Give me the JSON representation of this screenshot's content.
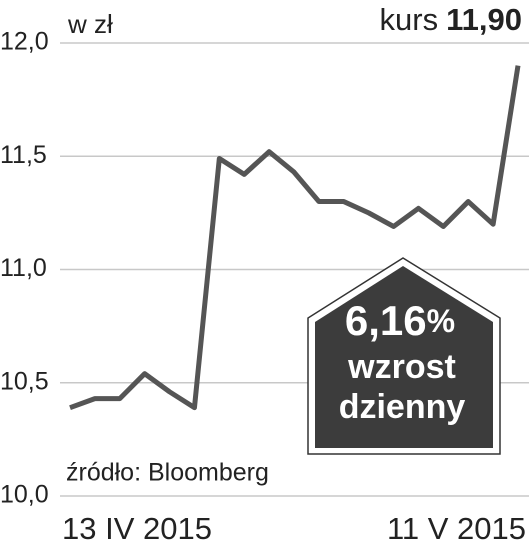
{
  "chart_data": {
    "type": "line",
    "unit_label": "w zł",
    "kurs_label": "kurs",
    "kurs_value": "11,90",
    "source": "źródło: Bloomberg",
    "badge": {
      "value": "6,16",
      "unit": "%",
      "line1": "wzrost",
      "line2": "dzienny"
    },
    "categories": [
      "13 IV 2015",
      null,
      null,
      null,
      null,
      null,
      null,
      null,
      null,
      null,
      null,
      null,
      null,
      null,
      null,
      null,
      null,
      null,
      "11 V 2015"
    ],
    "series": [
      {
        "color": "#555555",
        "values": [
          10.39,
          10.43,
          10.43,
          10.54,
          10.46,
          10.39,
          11.49,
          11.42,
          11.52,
          11.43,
          11.3,
          11.3,
          11.25,
          11.19,
          11.27,
          11.19,
          11.3,
          11.2,
          11.9
        ]
      }
    ],
    "ylim": [
      10.0,
      12.0
    ],
    "yticks": [
      {
        "value": 10.0,
        "label": "10,0"
      },
      {
        "value": 10.5,
        "label": "10,5"
      },
      {
        "value": 11.0,
        "label": "11,0"
      },
      {
        "value": 11.5,
        "label": "11,5"
      },
      {
        "value": 12.0,
        "label": "12,0"
      }
    ],
    "grid": true
  }
}
